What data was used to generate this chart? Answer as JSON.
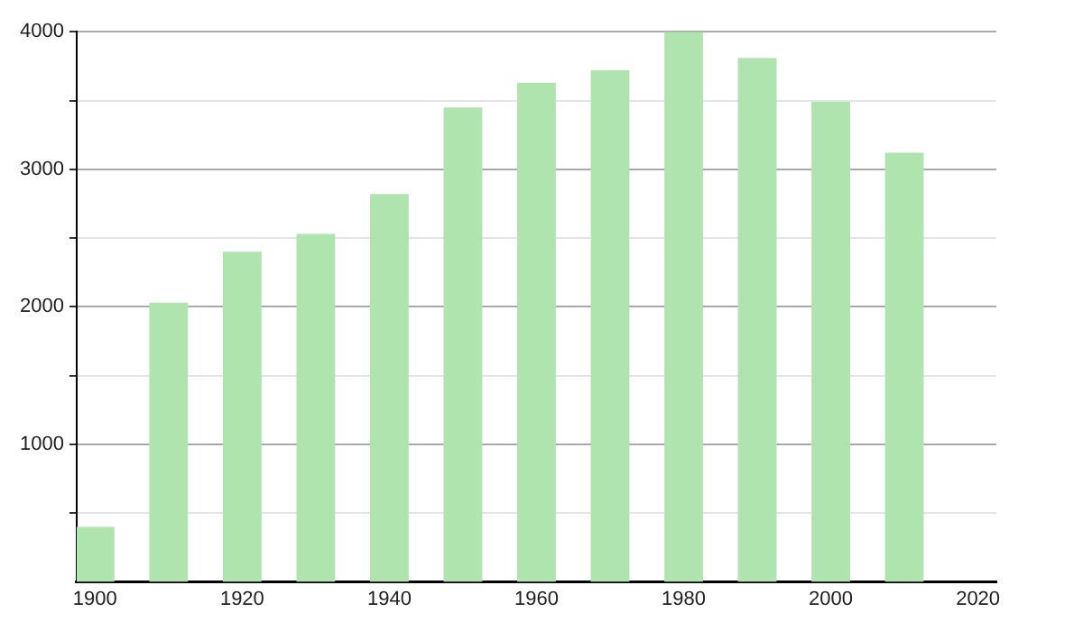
{
  "chart_data": {
    "type": "bar",
    "x": [
      1900,
      1910,
      1920,
      1930,
      1940,
      1950,
      1960,
      1970,
      1980,
      1990,
      2000,
      2010
    ],
    "values": [
      400,
      2030,
      2400,
      2530,
      2820,
      3450,
      3630,
      3720,
      4000,
      3810,
      3490,
      3120
    ],
    "color": "#b0e4ae",
    "xlim": [
      1897.5,
      2022.5
    ],
    "xticks": [
      1900,
      1920,
      1940,
      1960,
      1980,
      2000,
      2020
    ],
    "ylim": [
      0,
      4000
    ],
    "yticks": [
      {
        "value": 500,
        "label": null
      },
      1000,
      {
        "value": 1500,
        "label": null
      },
      2000,
      {
        "value": 2500,
        "label": null
      },
      3000,
      {
        "value": 3500,
        "label": null
      },
      4000
    ],
    "grid": "y",
    "legend": false
  }
}
